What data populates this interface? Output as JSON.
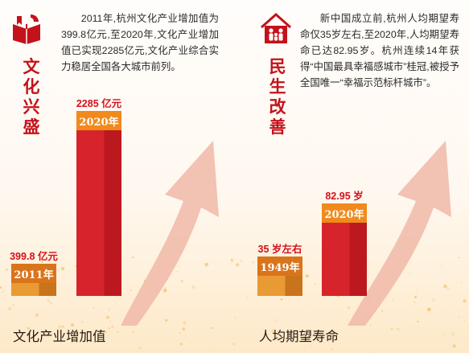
{
  "colors": {
    "theme_red": "#c4121a",
    "bar_red_1": "#d7232b",
    "bar_red_2": "#bc1820",
    "bar_orange_1": "#e89a33",
    "bar_orange_2": "#c9731d",
    "label_red": "#d4111a",
    "arrow_pink": "#f0b8a8"
  },
  "culture": {
    "icon": "book-icon",
    "title": "文化兴盛",
    "description": "2011年,杭州文化产业增加值为399.8亿元,至2020年,文化产业增加值已实现2285亿元,文化产业综合实力稳居全国各大城市前列。",
    "caption": "文化产业增加值"
  },
  "livelihood": {
    "icon": "family-house-icon",
    "title": "民生改善",
    "description": "新中国成立前,杭州人均期望寿命仅35岁左右,至2020年,人均期望寿命已达82.95岁。杭州连续14年获得“中国最具幸福感城市”桂冠,被授予全国唯一“幸福示范标杆城市”。",
    "caption": "人均期望寿命"
  },
  "chart_data": [
    {
      "type": "bar",
      "title": "",
      "xlabel": "文化产业增加值",
      "ylabel": "",
      "unit": "亿元",
      "categories": [
        "2011年",
        "2020年"
      ],
      "values": [
        399.8,
        2285
      ],
      "data_labels": [
        "399.8 亿元",
        "2285 亿元"
      ]
    },
    {
      "type": "bar",
      "title": "",
      "xlabel": "人均期望寿命",
      "ylabel": "",
      "unit": "岁",
      "categories": [
        "1949年",
        "2020年"
      ],
      "values": [
        35,
        82.95
      ],
      "data_labels": [
        "35 岁左右",
        "82.95 岁"
      ]
    }
  ]
}
